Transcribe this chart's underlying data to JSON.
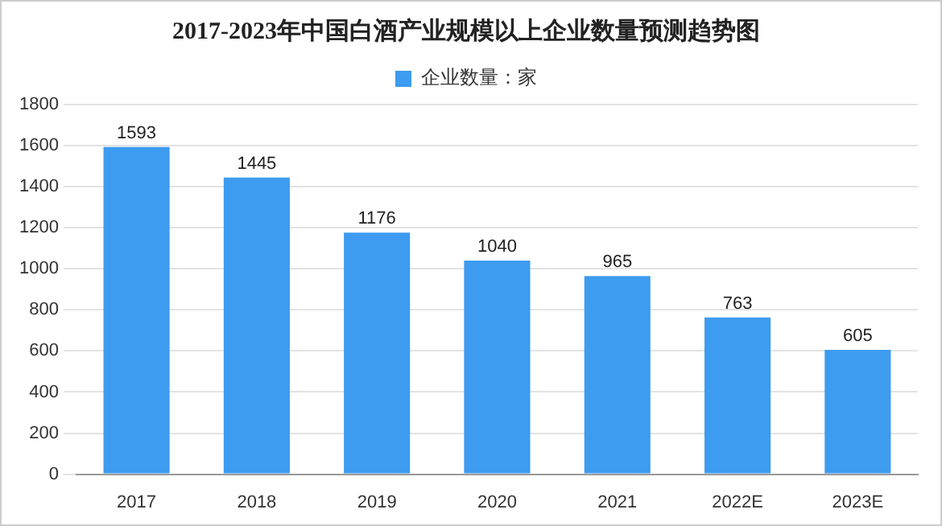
{
  "chart_data": {
    "type": "bar",
    "title": "2017-2023年中国白酒产业规模以上企业数量预测趋势图",
    "categories": [
      "2017",
      "2018",
      "2019",
      "2020",
      "2021",
      "2022E",
      "2023E"
    ],
    "series": [
      {
        "name": "企业数量：家",
        "color": "#3d9bf0",
        "values": [
          1593,
          1445,
          1176,
          1040,
          965,
          763,
          605
        ]
      }
    ],
    "ylim": [
      0,
      1800
    ],
    "yticks": [
      0,
      200,
      400,
      600,
      800,
      1000,
      1200,
      1400,
      1600,
      1800
    ],
    "grid": "y",
    "legend": "top",
    "data_labels": true
  }
}
